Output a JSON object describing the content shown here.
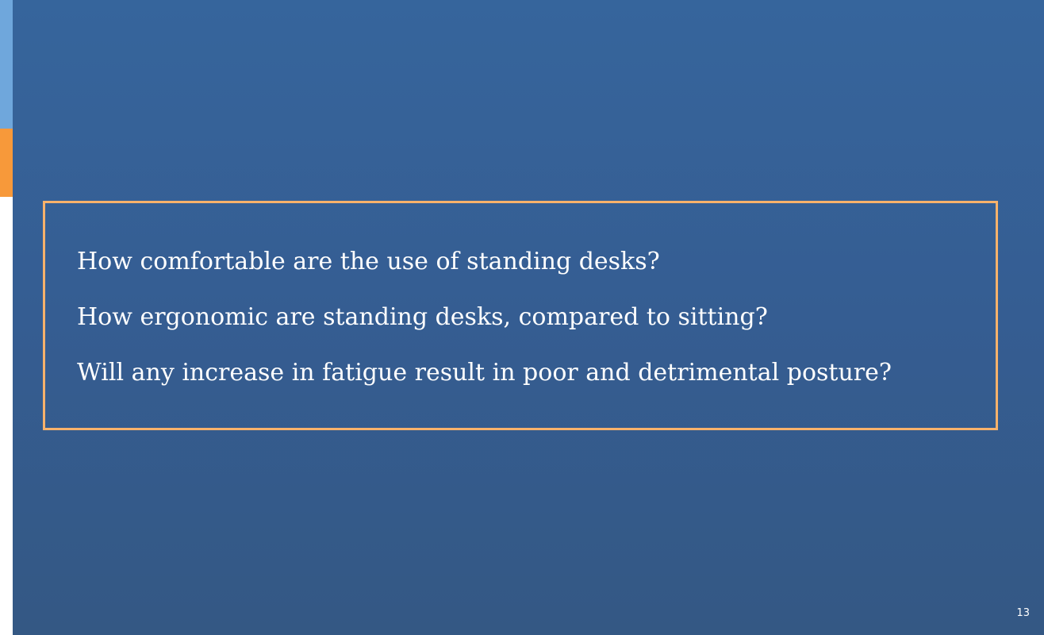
{
  "slide": {
    "questions": [
      "How comfortable are the use of standing desks?",
      "How ergonomic are standing desks, compared to sitting?",
      "Will any increase in fatigue result in poor and detrimental posture?"
    ],
    "page_number": "13"
  },
  "colors": {
    "background_top": "#36659c",
    "background_bottom": "#345884",
    "accent_blue": "#6fa7dc",
    "accent_orange": "#f7993a",
    "box_border": "#f8b26b",
    "text": "#ffffff"
  }
}
